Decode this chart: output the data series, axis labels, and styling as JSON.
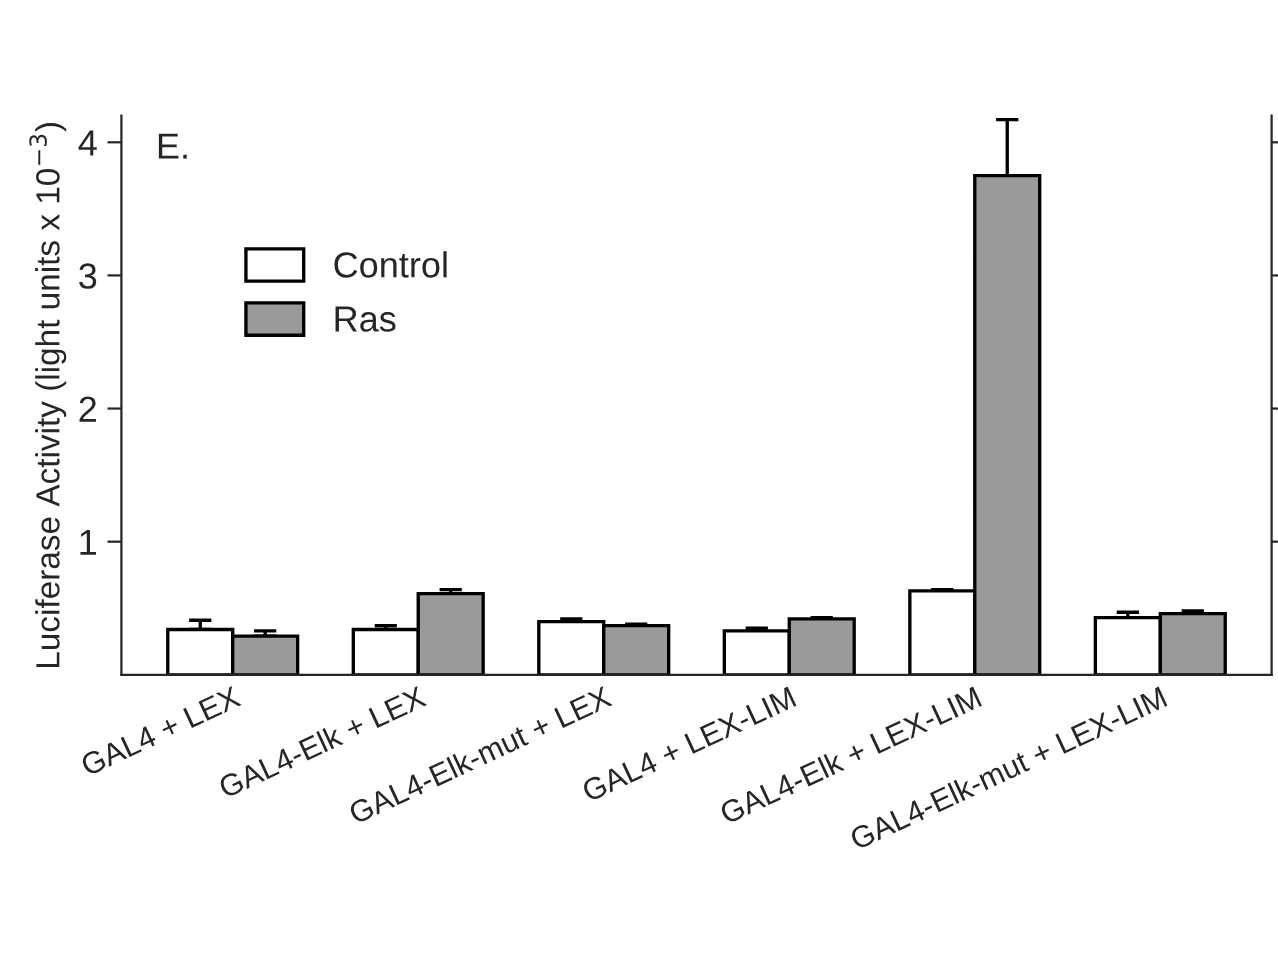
{
  "chart_data": {
    "type": "bar",
    "ylabel": "Luciferase Activity (light units x 10$^{−3}$)",
    "annotations": [
      "E."
    ],
    "categories": [
      "GAL4 + LEX",
      "GAL4-Elk + LEX",
      "GAL4-Elk-mut + LEX",
      "GAL4 + LEX-LIM",
      "GAL4-Elk + LEX-LIM",
      "GAL4-Elk-mut + LEX-LIM"
    ],
    "series": [
      {
        "name": "Control",
        "color": "#ffffff",
        "values": [
          0.34,
          0.34,
          0.4,
          0.33,
          0.63,
          0.43
        ],
        "errors": [
          [
            0.34,
            0.41
          ],
          [
            0.34,
            0.37
          ],
          [
            0.4,
            0.42
          ],
          [
            0.33,
            0.35
          ],
          [
            0.63,
            0.64
          ],
          [
            0.43,
            0.47
          ]
        ]
      },
      {
        "name": "Ras",
        "color": "#9a9a9a",
        "values": [
          0.29,
          0.61,
          0.37,
          0.42,
          3.75,
          0.46
        ],
        "errors": [
          [
            0.29,
            0.33
          ],
          [
            0.61,
            0.64
          ],
          [
            0.37,
            0.38
          ],
          [
            0.42,
            0.43
          ],
          [
            3.75,
            4.17
          ],
          [
            0.46,
            0.48
          ]
        ]
      }
    ],
    "ylim": [
      0,
      4.2
    ],
    "yticks": [
      1,
      2,
      3,
      4
    ],
    "grid": false,
    "legend": "top left"
  }
}
